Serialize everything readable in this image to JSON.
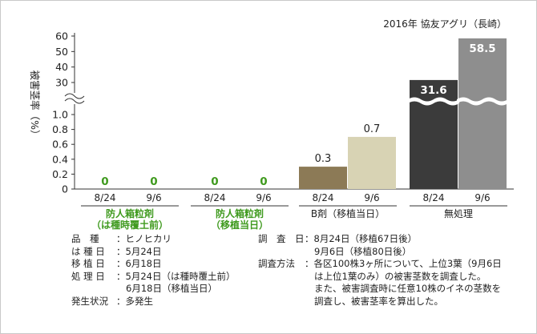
{
  "chart_data": {
    "type": "bar",
    "source": "2016年 協友アグリ（長崎）",
    "ylabel": "被害茎率（%）",
    "ylim_lower": [
      0,
      1.0
    ],
    "ylim_upper": [
      30,
      60
    ],
    "lower_ticks": [
      "0",
      "0.2",
      "0.4",
      "0.6",
      "0.8",
      "1.0"
    ],
    "upper_ticks": [
      "30",
      "40",
      "50",
      "60"
    ],
    "axis_break": true,
    "groups": [
      {
        "label_lines": [
          "防人箱粒剤",
          "（は種時覆土前）"
        ],
        "label_color": "#3f9a1e",
        "bars": [
          {
            "date": "8/24",
            "value": 0,
            "label": "0",
            "color": "#3f9a1e"
          },
          {
            "date": "9/6",
            "value": 0,
            "label": "0",
            "color": "#3f9a1e"
          }
        ]
      },
      {
        "label_lines": [
          "防人箱粒剤",
          "（移植当日）"
        ],
        "label_color": "#3f9a1e",
        "bars": [
          {
            "date": "8/24",
            "value": 0,
            "label": "0",
            "color": "#3f9a1e"
          },
          {
            "date": "9/6",
            "value": 0,
            "label": "0",
            "color": "#3f9a1e"
          }
        ]
      },
      {
        "label_lines": [
          "B剤（移植当日）"
        ],
        "label_color": "#222222",
        "bars": [
          {
            "date": "8/24",
            "value": 0.3,
            "label": "0.3",
            "color": "#8c7a56"
          },
          {
            "date": "9/6",
            "value": 0.7,
            "label": "0.7",
            "color": "#d8d3b4"
          }
        ]
      },
      {
        "label_lines": [
          "無処理"
        ],
        "label_color": "#222222",
        "bars": [
          {
            "date": "8/24",
            "value": 31.6,
            "label": "31.6",
            "color": "#3b3b3b"
          },
          {
            "date": "9/6",
            "value": 58.5,
            "label": "58.5",
            "color": "#8e8e8e"
          }
        ]
      }
    ]
  },
  "info_left": [
    {
      "label": "品　種",
      "value": "：ヒノヒカリ"
    },
    {
      "label": "は 種 日",
      "value": "：5月24日"
    },
    {
      "label": "移 植 日",
      "value": "：6月18日"
    },
    {
      "label": "処 理 日",
      "value": "：5月24日（は種時覆土前）"
    },
    {
      "label": "",
      "value": "6月18日（移植当日）"
    },
    {
      "label": "発生状況",
      "value": "：多発生"
    }
  ],
  "info_right": [
    {
      "label": "調　査　日",
      "value": "：8月24日（移植67日後）"
    },
    {
      "label": "",
      "value": "9月6日（移植80日後）"
    },
    {
      "label": "調査方法",
      "value": "：各区100株3ヶ所について、上位3葉（9月6日"
    },
    {
      "label": "",
      "value": "は上位1葉のみ）の被害茎数を調査した。"
    },
    {
      "label": "",
      "value": "また、被害調査時に任意10株のイネの茎数を"
    },
    {
      "label": "",
      "value": "調査し、被害茎率を算出した。"
    }
  ]
}
